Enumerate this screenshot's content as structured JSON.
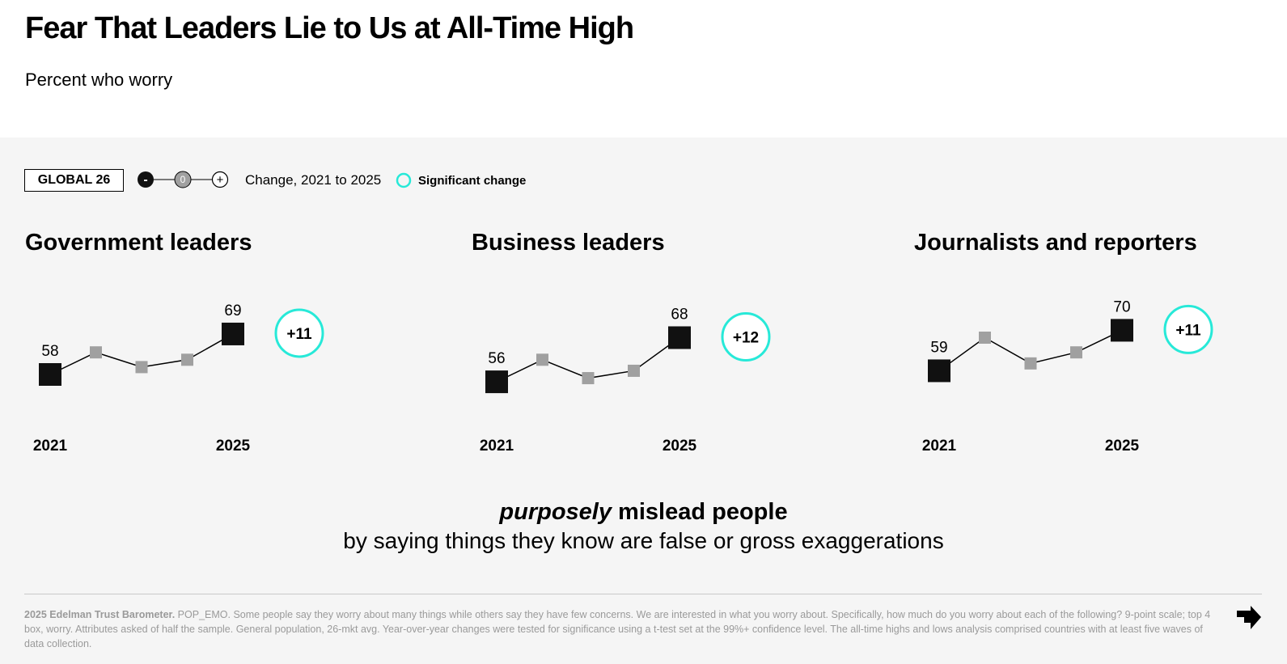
{
  "header": {
    "title": "Fear That Leaders Lie to Us at All-Time High",
    "subtitle": "Percent who worry"
  },
  "legend": {
    "global_label": "GLOBAL 26",
    "scale_icons": {
      "minus": "-",
      "zero": "0",
      "plus": "+"
    },
    "change_label": "Change, 2021 to 2025",
    "significant_label": "Significant change",
    "significant_color": "#27e9d8"
  },
  "chart_data": [
    {
      "type": "line",
      "title": "Government leaders",
      "x": [
        "2021",
        "2022",
        "2023",
        "2024",
        "2025"
      ],
      "x_tick_labels": [
        "2021",
        "",
        "",
        "",
        "2025"
      ],
      "values": [
        58,
        64,
        60,
        62,
        69
      ],
      "endpoint_labels": [
        "58",
        "69"
      ],
      "change_label": "+11",
      "significant": true
    },
    {
      "type": "line",
      "title": "Business leaders",
      "x": [
        "2021",
        "2022",
        "2023",
        "2024",
        "2025"
      ],
      "x_tick_labels": [
        "2021",
        "",
        "",
        "",
        "2025"
      ],
      "values": [
        56,
        62,
        57,
        59,
        68
      ],
      "endpoint_labels": [
        "56",
        "68"
      ],
      "change_label": "+12",
      "significant": true
    },
    {
      "type": "line",
      "title": "Journalists and reporters",
      "x": [
        "2021",
        "2022",
        "2023",
        "2024",
        "2025"
      ],
      "x_tick_labels": [
        "2021",
        "",
        "",
        "",
        "2025"
      ],
      "values": [
        59,
        68,
        61,
        64,
        70
      ],
      "endpoint_labels": [
        "59",
        "70"
      ],
      "change_label": "+11",
      "significant": true
    }
  ],
  "caption": {
    "emphasis": "purposely",
    "line1_rest": " mislead people",
    "line2": "by saying things they know are false or gross exaggerations"
  },
  "footnote": {
    "source": "2025 Edelman Trust Barometer.",
    "text": " POP_EMO. Some people say they worry about many things while others say they have few concerns. We are interested in what you worry about. Specifically, how much do you worry about each of the following? 9-point scale; top 4 box, worry. Attributes asked of half the sample. General population, 26-mkt avg. Year-over-year changes were tested for significance using a t-test set at the 99%+ confidence level. The all-time highs and lows analysis comprised countries with at least five waves of data collection."
  },
  "colors": {
    "endpoint_marker": "#111111",
    "mid_marker": "#a0a0a0",
    "line": "#000000",
    "panel_bg": "#f5f5f5"
  },
  "icons": {
    "next": "arrow-right-down-icon",
    "scale": "minus-zero-plus-scale-icon",
    "significance": "teal-circle-icon"
  }
}
